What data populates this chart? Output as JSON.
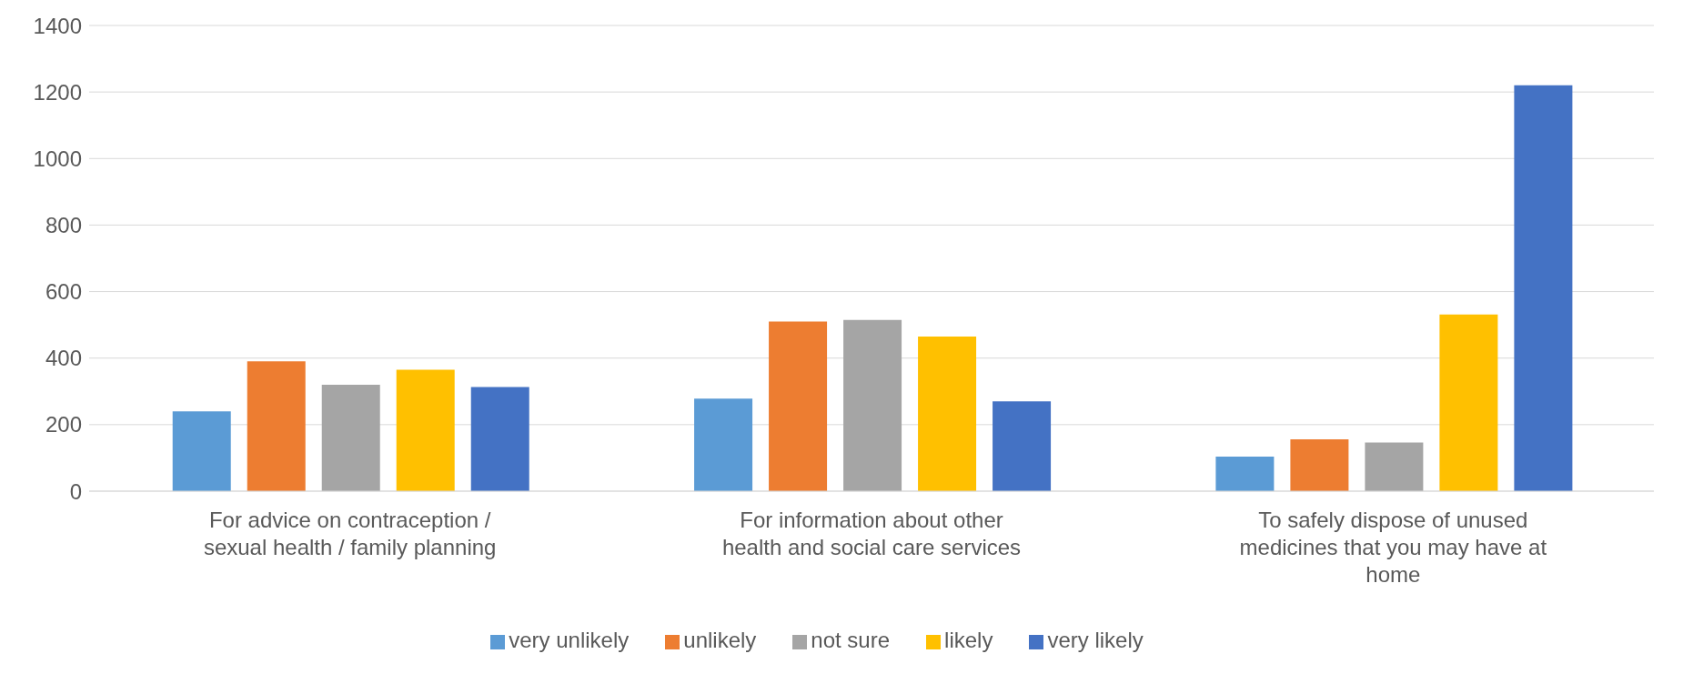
{
  "chart_data": {
    "type": "bar",
    "categories": [
      "For advice on contraception / sexual health / family planning",
      "For information about other health and social care services",
      "To safely dispose of unused medicines that you may have at home"
    ],
    "series": [
      {
        "name": "very unlikely",
        "color": "#5b9bd5",
        "values": [
          240,
          278,
          104
        ]
      },
      {
        "name": "unlikely",
        "color": "#ed7d31",
        "values": [
          390,
          510,
          156
        ]
      },
      {
        "name": "not sure",
        "color": "#a5a5a5",
        "values": [
          320,
          515,
          146
        ]
      },
      {
        "name": "likely",
        "color": "#ffc000",
        "values": [
          365,
          465,
          531
        ]
      },
      {
        "name": "very likely",
        "color": "#4472c4",
        "values": [
          313,
          270,
          1220
        ]
      }
    ],
    "ylim": [
      0,
      1400
    ],
    "yticks": [
      0,
      200,
      400,
      600,
      800,
      1000,
      1200,
      1400
    ],
    "grid": "y",
    "legend": "bottom"
  }
}
